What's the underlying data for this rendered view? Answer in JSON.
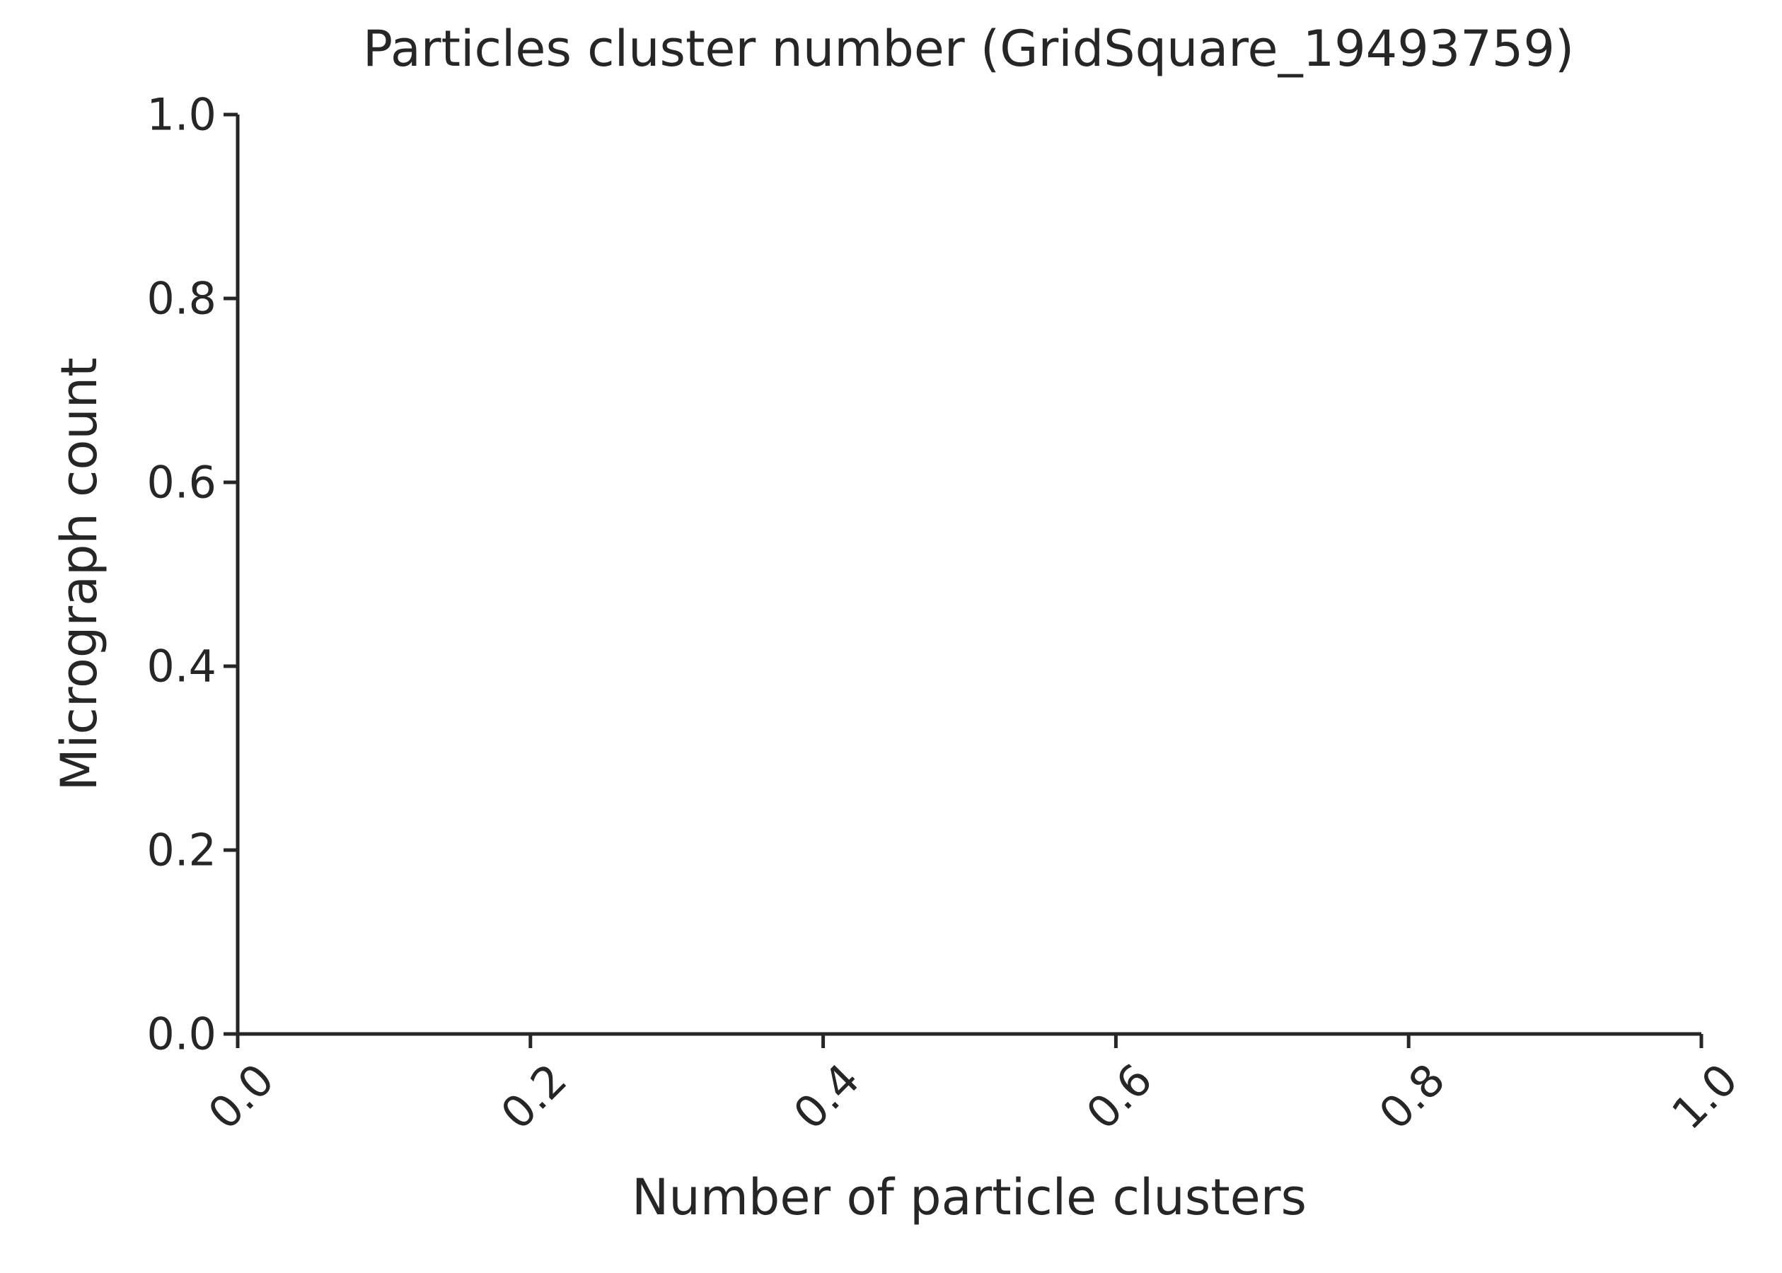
{
  "chart_data": {
    "type": "bar",
    "title": "Particles cluster number (GridSquare_19493759)",
    "xlabel": "Number of particle clusters",
    "ylabel": "Micrograph count",
    "xlim": [
      0.0,
      1.0
    ],
    "ylim": [
      0.0,
      1.0
    ],
    "x_ticks": [
      "0.0",
      "0.2",
      "0.4",
      "0.6",
      "0.8",
      "1.0"
    ],
    "y_ticks": [
      "0.0",
      "0.2",
      "0.4",
      "0.6",
      "0.8",
      "1.0"
    ],
    "x_tick_rotation": 45,
    "grid": false,
    "series": [],
    "colors": {
      "text": "#262626",
      "axis": "#262626",
      "background": "#ffffff"
    }
  }
}
